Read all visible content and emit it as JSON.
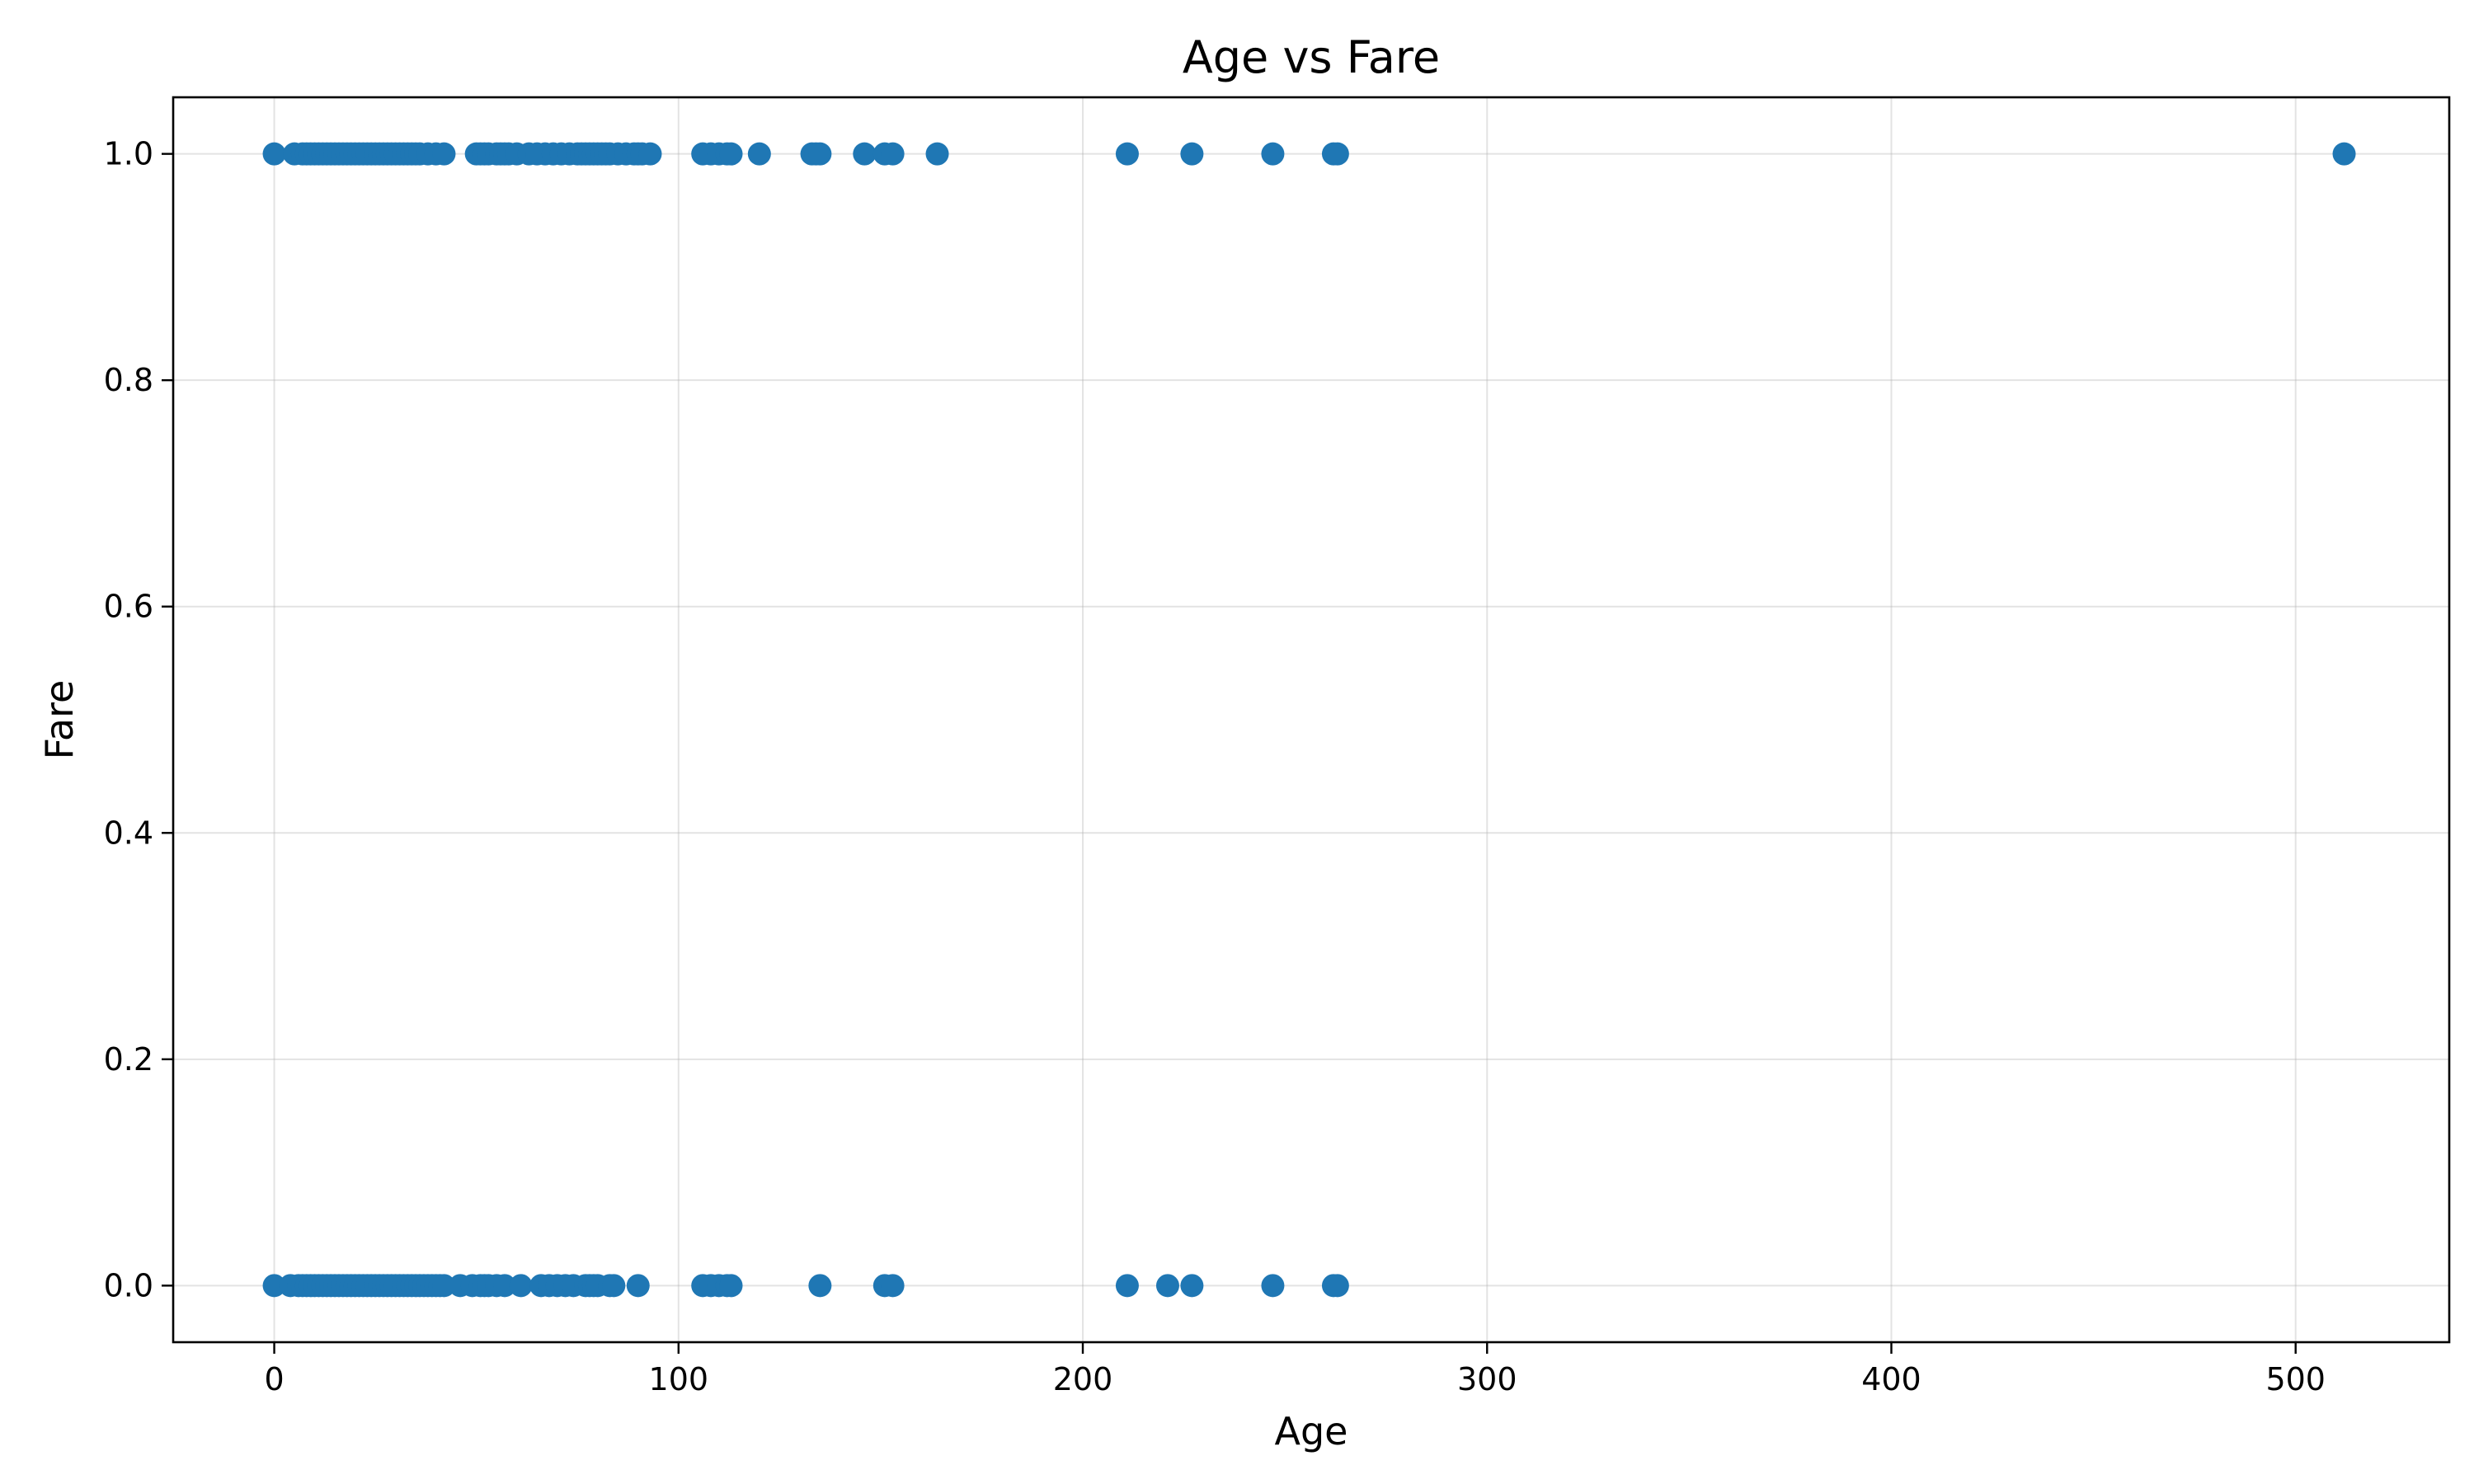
{
  "chart_data": {
    "type": "scatter",
    "title": "Age vs Fare",
    "xlabel": "Age",
    "ylabel": "Fare",
    "xlim": [
      -25,
      538
    ],
    "ylim": [
      -0.05,
      1.05
    ],
    "x_ticks": [
      0,
      100,
      200,
      300,
      400,
      500
    ],
    "x_tick_labels": [
      "0",
      "100",
      "200",
      "300",
      "400",
      "500"
    ],
    "y_ticks": [
      0.0,
      0.2,
      0.4,
      0.6,
      0.8,
      1.0
    ],
    "y_tick_labels": [
      "0.0",
      "0.2",
      "0.4",
      "0.6",
      "0.8",
      "1.0"
    ],
    "grid": true,
    "marker_color": "#1f77b4",
    "series": [
      {
        "x": [
          0,
          5,
          7,
          8,
          9,
          10,
          11,
          12,
          13,
          14,
          15,
          16,
          17,
          18,
          19,
          20,
          21,
          22,
          23,
          24,
          25,
          26,
          27,
          28,
          29,
          30,
          31,
          32,
          33,
          34,
          35,
          36,
          38,
          40,
          42,
          50,
          51,
          52,
          53,
          55,
          56,
          57,
          58,
          60,
          63,
          65,
          67,
          69,
          71,
          73,
          75,
          76,
          77,
          78,
          79,
          80,
          81,
          82,
          83,
          85,
          87,
          89,
          90,
          91,
          93,
          106,
          108,
          110,
          112,
          113,
          120,
          133,
          134,
          135,
          146,
          151,
          153,
          164,
          211,
          227,
          247,
          262,
          263,
          512
        ],
        "y": [
          1,
          1,
          1,
          1,
          1,
          1,
          1,
          1,
          1,
          1,
          1,
          1,
          1,
          1,
          1,
          1,
          1,
          1,
          1,
          1,
          1,
          1,
          1,
          1,
          1,
          1,
          1,
          1,
          1,
          1,
          1,
          1,
          1,
          1,
          1,
          1,
          1,
          1,
          1,
          1,
          1,
          1,
          1,
          1,
          1,
          1,
          1,
          1,
          1,
          1,
          1,
          1,
          1,
          1,
          1,
          1,
          1,
          1,
          1,
          1,
          1,
          1,
          1,
          1,
          1,
          1,
          1,
          1,
          1,
          1,
          1,
          1,
          1,
          1,
          1,
          1,
          1,
          1,
          1,
          1,
          1,
          1,
          1,
          1
        ]
      },
      {
        "x": [
          0,
          4,
          6,
          7,
          8,
          9,
          10,
          11,
          12,
          13,
          14,
          15,
          16,
          17,
          18,
          19,
          20,
          21,
          22,
          23,
          24,
          25,
          26,
          27,
          28,
          29,
          30,
          31,
          32,
          33,
          34,
          35,
          36,
          37,
          38,
          39,
          40,
          41,
          42,
          46,
          49,
          51,
          52,
          53,
          55,
          57,
          61,
          66,
          68,
          70,
          72,
          74,
          77,
          78,
          79,
          80,
          83,
          84,
          90,
          106,
          108,
          110,
          112,
          113,
          135,
          151,
          153,
          211,
          221,
          227,
          247,
          262,
          263
        ],
        "y": [
          0,
          0,
          0,
          0,
          0,
          0,
          0,
          0,
          0,
          0,
          0,
          0,
          0,
          0,
          0,
          0,
          0,
          0,
          0,
          0,
          0,
          0,
          0,
          0,
          0,
          0,
          0,
          0,
          0,
          0,
          0,
          0,
          0,
          0,
          0,
          0,
          0,
          0,
          0,
          0,
          0,
          0,
          0,
          0,
          0,
          0,
          0,
          0,
          0,
          0,
          0,
          0,
          0,
          0,
          0,
          0,
          0,
          0,
          0,
          0,
          0,
          0,
          0,
          0,
          0,
          0,
          0,
          0,
          0,
          0,
          0,
          0,
          0
        ]
      }
    ]
  }
}
